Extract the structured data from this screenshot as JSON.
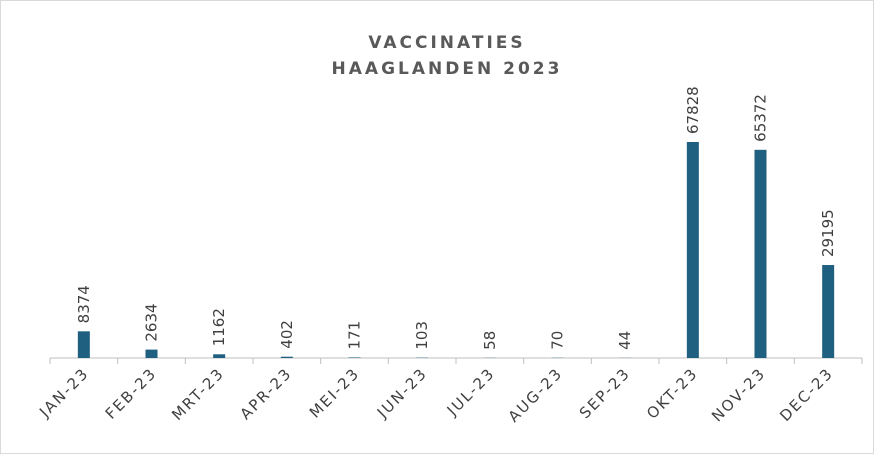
{
  "chart_data": {
    "type": "bar",
    "title": [
      "VACCINATIES",
      "HAAGLANDEN 2023"
    ],
    "categories": [
      "JAN-23",
      "FEB-23",
      "MRT-23",
      "APR-23",
      "MEI-23",
      "JUN-23",
      "JUL-23",
      "AUG-23",
      "SEP-23",
      "OKT-23",
      "NOV-23",
      "DEC-23"
    ],
    "values": [
      8374,
      2634,
      1162,
      402,
      171,
      103,
      58,
      70,
      44,
      67828,
      65372,
      29195
    ],
    "color": "#1f5f7f"
  }
}
